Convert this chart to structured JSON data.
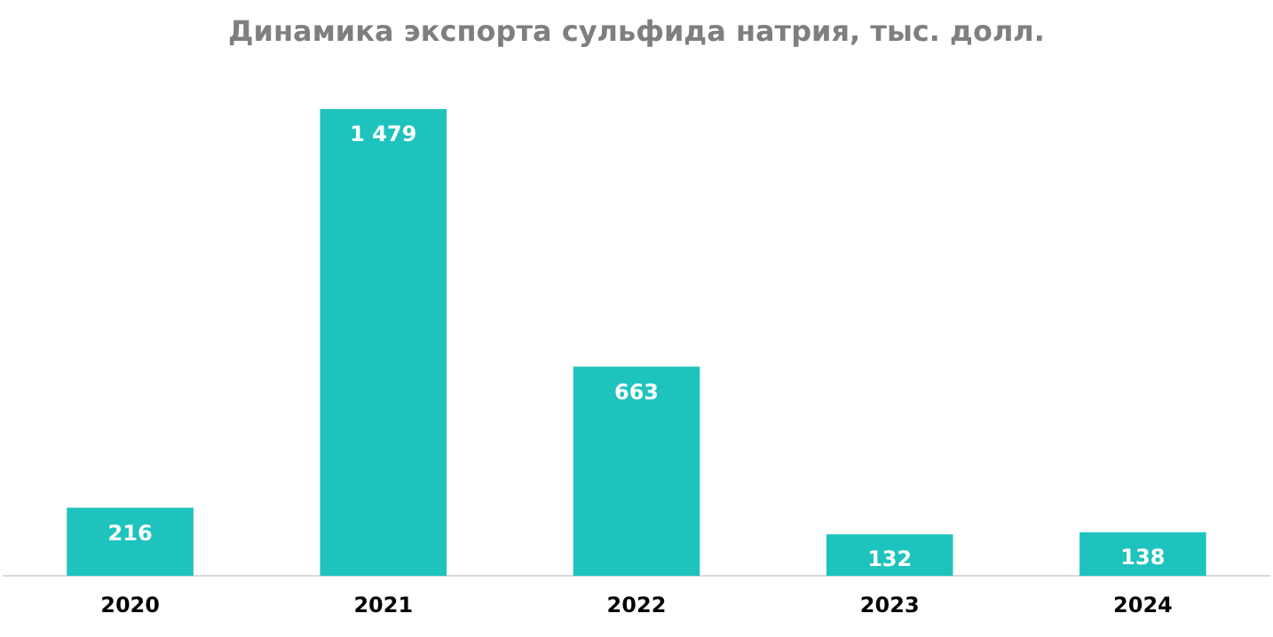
{
  "chart_data": {
    "type": "bar",
    "title": "Динамика экспорта сульфида натрия, тыс. долл.",
    "categories": [
      "2020",
      "2021",
      "2022",
      "2023",
      "2024"
    ],
    "values": [
      216,
      1479,
      663,
      132,
      138
    ],
    "color": "#1fc3bd",
    "value_labels": [
      "216",
      "1 479",
      "663",
      "132",
      "138"
    ],
    "grid": false,
    "legend": false
  }
}
